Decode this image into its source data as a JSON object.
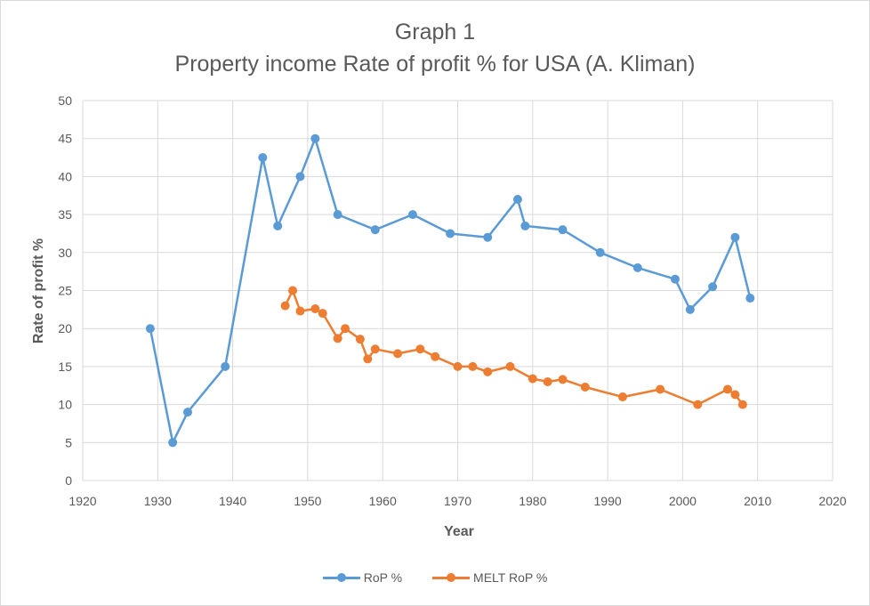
{
  "chart_data": {
    "type": "line",
    "title": "Graph 1",
    "subtitle": "Property income Rate of profit % for USA (A. Kliman)",
    "xlabel": "Year",
    "ylabel": "Rate of profit %",
    "xlim": [
      1920,
      2020
    ],
    "ylim": [
      0,
      50
    ],
    "xticks": [
      1920,
      1930,
      1940,
      1950,
      1960,
      1970,
      1980,
      1990,
      2000,
      2010,
      2020
    ],
    "yticks": [
      0,
      5,
      10,
      15,
      20,
      25,
      30,
      35,
      40,
      45,
      50
    ],
    "grid": true,
    "legend_position": "bottom",
    "series": [
      {
        "name": "RoP %",
        "color": "#5b9bd5",
        "points": [
          [
            1929,
            20
          ],
          [
            1932,
            5
          ],
          [
            1934,
            9
          ],
          [
            1939,
            15
          ],
          [
            1944,
            42.5
          ],
          [
            1946,
            33.5
          ],
          [
            1949,
            40
          ],
          [
            1951,
            45
          ],
          [
            1954,
            35
          ],
          [
            1959,
            33
          ],
          [
            1964,
            35
          ],
          [
            1969,
            32.5
          ],
          [
            1974,
            32
          ],
          [
            1978,
            37
          ],
          [
            1979,
            33.5
          ],
          [
            1984,
            33
          ],
          [
            1989,
            30
          ],
          [
            1994,
            28
          ],
          [
            1999,
            26.5
          ],
          [
            2001,
            22.5
          ],
          [
            2004,
            25.5
          ],
          [
            2007,
            32
          ],
          [
            2009,
            24
          ]
        ]
      },
      {
        "name": "MELT RoP %",
        "color": "#ed7d31",
        "points": [
          [
            1947,
            23
          ],
          [
            1948,
            25
          ],
          [
            1949,
            22.3
          ],
          [
            1951,
            22.6
          ],
          [
            1952,
            22
          ],
          [
            1954,
            18.7
          ],
          [
            1955,
            20
          ],
          [
            1957,
            18.6
          ],
          [
            1958,
            16
          ],
          [
            1959,
            17.3
          ],
          [
            1962,
            16.7
          ],
          [
            1965,
            17.3
          ],
          [
            1967,
            16.3
          ],
          [
            1970,
            15
          ],
          [
            1972,
            15
          ],
          [
            1974,
            14.3
          ],
          [
            1977,
            15
          ],
          [
            1980,
            13.4
          ],
          [
            1982,
            13
          ],
          [
            1984,
            13.3
          ],
          [
            1987,
            12.3
          ],
          [
            1992,
            11
          ],
          [
            1997,
            12
          ],
          [
            2002,
            10
          ],
          [
            2006,
            12
          ],
          [
            2007,
            11.3
          ],
          [
            2008,
            10
          ]
        ]
      }
    ]
  }
}
